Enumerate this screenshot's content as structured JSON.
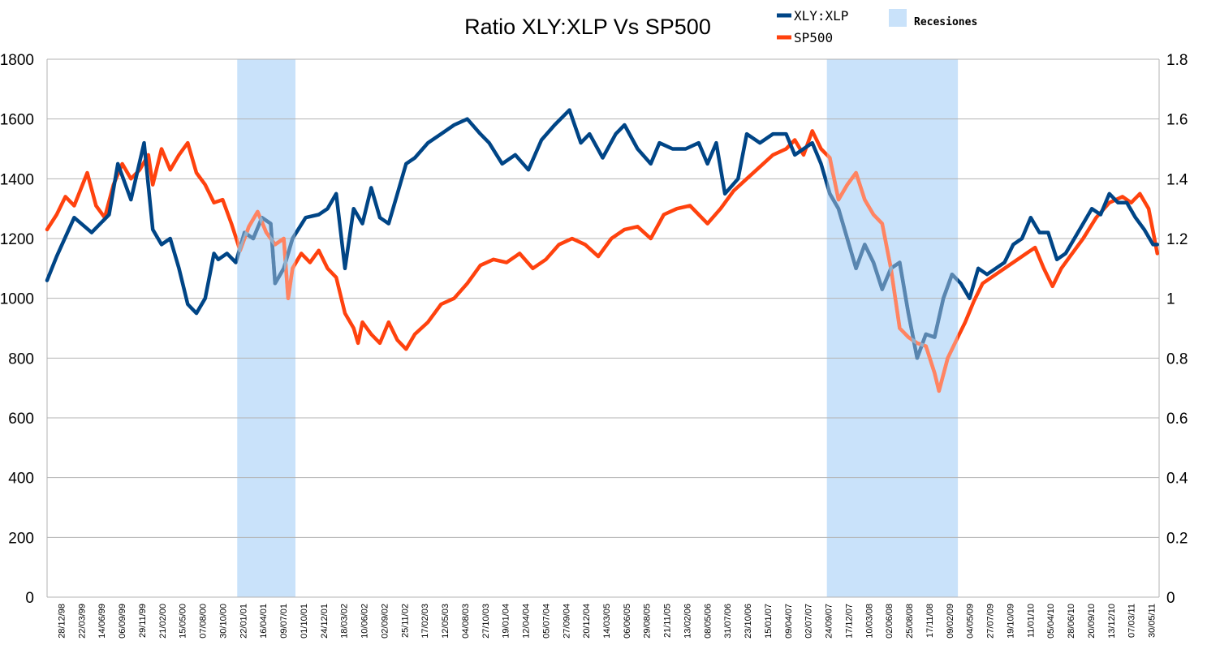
{
  "chart_data": {
    "type": "line",
    "title": "Ratio XLY:XLP Vs SP500",
    "xlabel": "",
    "ylabel": "",
    "y2label": "",
    "ylim": [
      0,
      1800
    ],
    "y2lim": [
      0,
      1.8
    ],
    "yticks": [
      "0",
      "200",
      "400",
      "600",
      "800",
      "1000",
      "1200",
      "1400",
      "1600",
      "1800"
    ],
    "y2ticks": [
      "0",
      "0.2",
      "0.4",
      "0.6",
      "0.8",
      "1",
      "1.2",
      "1.4",
      "1.6",
      "1.8"
    ],
    "grid": true,
    "legend_position": "top",
    "x_tick_labels": [
      "28/12/98",
      "22/03/99",
      "14/06/99",
      "06/09/99",
      "29/11/99",
      "21/02/00",
      "15/05/00",
      "07/08/00",
      "30/10/00",
      "22/01/01",
      "16/04/01",
      "09/07/01",
      "01/10/01",
      "24/12/01",
      "18/03/02",
      "10/06/02",
      "02/09/02",
      "25/11/02",
      "17/02/03",
      "12/05/03",
      "04/08/03",
      "27/10/03",
      "19/01/04",
      "12/04/04",
      "05/07/04",
      "27/09/04",
      "20/12/04",
      "14/03/05",
      "06/06/05",
      "29/08/05",
      "21/11/05",
      "13/02/06",
      "08/05/06",
      "31/07/06",
      "23/10/06",
      "15/01/07",
      "09/04/07",
      "02/07/07",
      "24/09/07",
      "17/12/07",
      "10/03/08",
      "02/06/08",
      "25/08/08",
      "17/11/08",
      "09/02/09",
      "04/05/09",
      "27/07/09",
      "19/10/09",
      "11/01/10",
      "05/04/10",
      "28/06/10",
      "20/09/10",
      "13/12/10",
      "07/03/11",
      "30/05/11"
    ],
    "recessions": [
      {
        "legend": "Recesiones",
        "from": "2001-03",
        "to": "2001-11",
        "color": "#c9e2fa"
      },
      {
        "legend": "Recesiones",
        "from": "2007-12",
        "to": "2009-06",
        "color": "#c9e2fa"
      }
    ],
    "series": [
      {
        "name": "XLY:XLP",
        "axis": "right",
        "color": "#004586",
        "x": [
          1998.99,
          1999.1,
          1999.3,
          1999.5,
          1999.7,
          1999.8,
          1999.95,
          2000.1,
          2000.2,
          2000.3,
          2000.4,
          2000.5,
          2000.6,
          2000.7,
          2000.8,
          2000.9,
          2000.95,
          2001.05,
          2001.15,
          2001.25,
          2001.35,
          2001.45,
          2001.55,
          2001.6,
          2001.7,
          2001.8,
          2001.95,
          2002.1,
          2002.2,
          2002.3,
          2002.4,
          2002.5,
          2002.6,
          2002.7,
          2002.8,
          2002.9,
          2003.0,
          2003.1,
          2003.2,
          2003.35,
          2003.5,
          2003.65,
          2003.8,
          2003.95,
          2004.05,
          2004.2,
          2004.35,
          2004.5,
          2004.65,
          2004.8,
          2004.97,
          2005.1,
          2005.2,
          2005.35,
          2005.5,
          2005.6,
          2005.75,
          2005.9,
          2006.0,
          2006.15,
          2006.3,
          2006.45,
          2006.55,
          2006.65,
          2006.75,
          2006.9,
          2007.0,
          2007.15,
          2007.3,
          2007.45,
          2007.55,
          2007.65,
          2007.75,
          2007.85,
          2007.95,
          2008.05,
          2008.15,
          2008.25,
          2008.35,
          2008.45,
          2008.55,
          2008.65,
          2008.75,
          2008.85,
          2008.95,
          2009.05,
          2009.15,
          2009.25,
          2009.35,
          2009.45,
          2009.55,
          2009.65,
          2009.75,
          2009.85,
          2009.95,
          2010.05,
          2010.15,
          2010.25,
          2010.35,
          2010.45,
          2010.55,
          2010.65,
          2010.75,
          2010.85,
          2010.95,
          2011.05,
          2011.15,
          2011.25,
          2011.35,
          2011.45,
          2011.55,
          2011.65,
          2011.7
        ],
        "values": [
          1.06,
          1.14,
          1.27,
          1.22,
          1.28,
          1.45,
          1.33,
          1.52,
          1.23,
          1.18,
          1.2,
          1.1,
          0.98,
          0.95,
          1.0,
          1.15,
          1.13,
          1.15,
          1.12,
          1.22,
          1.2,
          1.27,
          1.25,
          1.05,
          1.1,
          1.2,
          1.27,
          1.28,
          1.3,
          1.35,
          1.1,
          1.3,
          1.25,
          1.37,
          1.27,
          1.25,
          1.35,
          1.45,
          1.47,
          1.52,
          1.55,
          1.58,
          1.6,
          1.55,
          1.52,
          1.45,
          1.48,
          1.43,
          1.53,
          1.58,
          1.63,
          1.52,
          1.55,
          1.47,
          1.55,
          1.58,
          1.5,
          1.45,
          1.52,
          1.5,
          1.5,
          1.52,
          1.45,
          1.52,
          1.35,
          1.4,
          1.55,
          1.52,
          1.55,
          1.55,
          1.48,
          1.5,
          1.52,
          1.45,
          1.35,
          1.3,
          1.2,
          1.1,
          1.18,
          1.12,
          1.03,
          1.1,
          1.12,
          0.95,
          0.8,
          0.88,
          0.87,
          1.0,
          1.08,
          1.05,
          1.0,
          1.1,
          1.08,
          1.1,
          1.12,
          1.18,
          1.2,
          1.27,
          1.22,
          1.22,
          1.13,
          1.15,
          1.2,
          1.25,
          1.3,
          1.28,
          1.35,
          1.32,
          1.32,
          1.27,
          1.23,
          1.18,
          1.18
        ]
      },
      {
        "name": "SP500",
        "axis": "left",
        "color": "#ff420e",
        "x": [
          1998.99,
          1999.1,
          1999.2,
          1999.3,
          1999.45,
          1999.55,
          1999.65,
          1999.75,
          1999.85,
          1999.95,
          2000.05,
          2000.15,
          2000.2,
          2000.3,
          2000.4,
          2000.5,
          2000.6,
          2000.7,
          2000.8,
          2000.9,
          2001.0,
          2001.1,
          2001.2,
          2001.3,
          2001.4,
          2001.5,
          2001.6,
          2001.7,
          2001.75,
          2001.8,
          2001.9,
          2002.0,
          2002.1,
          2002.2,
          2002.3,
          2002.4,
          2002.5,
          2002.55,
          2002.6,
          2002.7,
          2002.8,
          2002.9,
          2003.0,
          2003.1,
          2003.2,
          2003.35,
          2003.5,
          2003.65,
          2003.8,
          2003.95,
          2004.1,
          2004.25,
          2004.4,
          2004.55,
          2004.7,
          2004.85,
          2005.0,
          2005.15,
          2005.3,
          2005.45,
          2005.6,
          2005.75,
          2005.9,
          2006.05,
          2006.2,
          2006.35,
          2006.45,
          2006.55,
          2006.7,
          2006.85,
          2007.0,
          2007.15,
          2007.3,
          2007.45,
          2007.55,
          2007.65,
          2007.75,
          2007.85,
          2007.95,
          2008.05,
          2008.15,
          2008.25,
          2008.35,
          2008.45,
          2008.55,
          2008.65,
          2008.75,
          2008.85,
          2008.95,
          2009.05,
          2009.15,
          2009.2,
          2009.3,
          2009.4,
          2009.5,
          2009.6,
          2009.7,
          2009.85,
          2010.0,
          2010.1,
          2010.2,
          2010.3,
          2010.4,
          2010.5,
          2010.6,
          2010.7,
          2010.85,
          2011.0,
          2011.15,
          2011.3,
          2011.4,
          2011.5,
          2011.6,
          2011.7
        ],
        "values": [
          1230,
          1280,
          1340,
          1310,
          1420,
          1310,
          1270,
          1380,
          1450,
          1400,
          1430,
          1480,
          1380,
          1500,
          1430,
          1480,
          1520,
          1420,
          1380,
          1320,
          1330,
          1250,
          1160,
          1240,
          1290,
          1220,
          1180,
          1200,
          1000,
          1100,
          1150,
          1120,
          1160,
          1100,
          1070,
          950,
          900,
          850,
          920,
          880,
          850,
          920,
          860,
          830,
          880,
          920,
          980,
          1000,
          1050,
          1110,
          1130,
          1120,
          1150,
          1100,
          1130,
          1180,
          1200,
          1180,
          1140,
          1200,
          1230,
          1240,
          1200,
          1280,
          1300,
          1310,
          1280,
          1250,
          1300,
          1360,
          1400,
          1440,
          1480,
          1500,
          1530,
          1480,
          1560,
          1500,
          1470,
          1330,
          1380,
          1420,
          1330,
          1280,
          1250,
          1100,
          900,
          870,
          850,
          840,
          750,
          690,
          800,
          860,
          920,
          990,
          1050,
          1080,
          1110,
          1130,
          1150,
          1170,
          1100,
          1040,
          1100,
          1140,
          1200,
          1270,
          1320,
          1340,
          1320,
          1350,
          1300,
          1150
        ]
      }
    ]
  }
}
